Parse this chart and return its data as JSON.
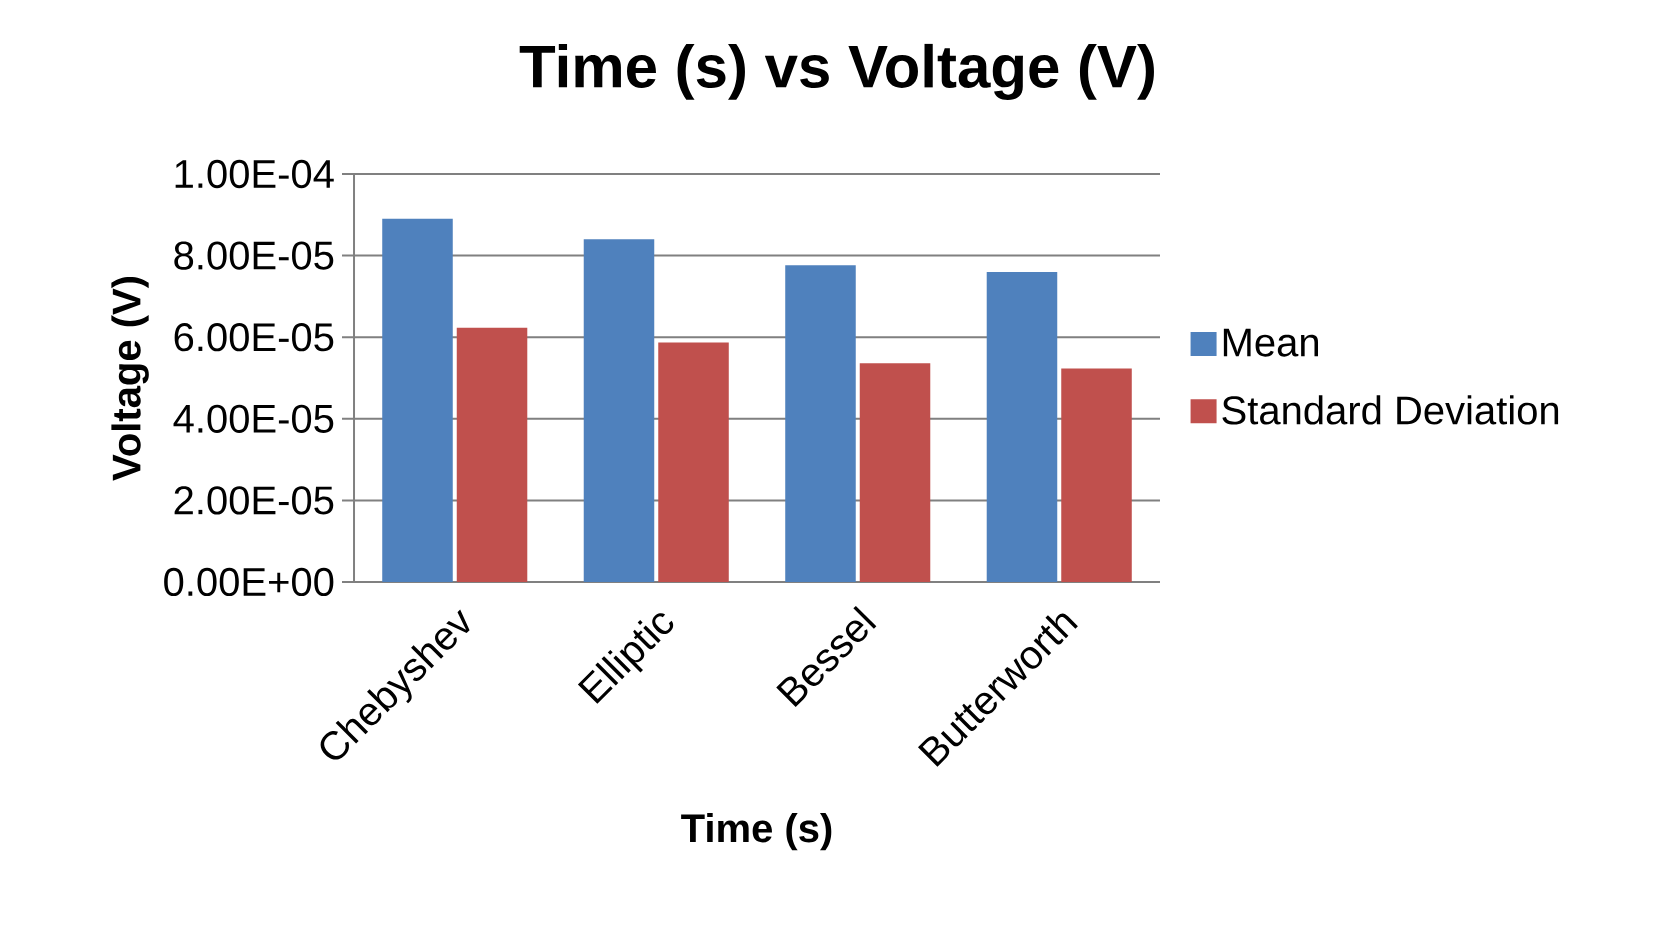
{
  "chart_data": {
    "type": "bar",
    "title": "Time (s) vs Voltage (V)",
    "xlabel": "Time (s)",
    "ylabel": "Voltage (V)",
    "categories": [
      "Chebyshev",
      "Elliptic",
      "Bessel",
      "Butterworth"
    ],
    "series": [
      {
        "name": "Mean",
        "color": "#4f81bd",
        "values": [
          8.9e-05,
          8.4e-05,
          7.76e-05,
          7.6e-05
        ]
      },
      {
        "name": "Standard Deviation",
        "color": "#c0504d",
        "values": [
          6.23e-05,
          5.87e-05,
          5.36e-05,
          5.23e-05
        ]
      }
    ],
    "ylim": [
      0,
      0.0001
    ],
    "yticks": [
      {
        "value": 0,
        "label": "0.00E+00"
      },
      {
        "value": 2e-05,
        "label": "2.00E-05"
      },
      {
        "value": 4e-05,
        "label": "4.00E-05"
      },
      {
        "value": 6e-05,
        "label": "6.00E-05"
      },
      {
        "value": 8e-05,
        "label": "8.00E-05"
      },
      {
        "value": 0.0001,
        "label": "1.00E-04"
      }
    ],
    "grid": "y",
    "legend": "right"
  }
}
